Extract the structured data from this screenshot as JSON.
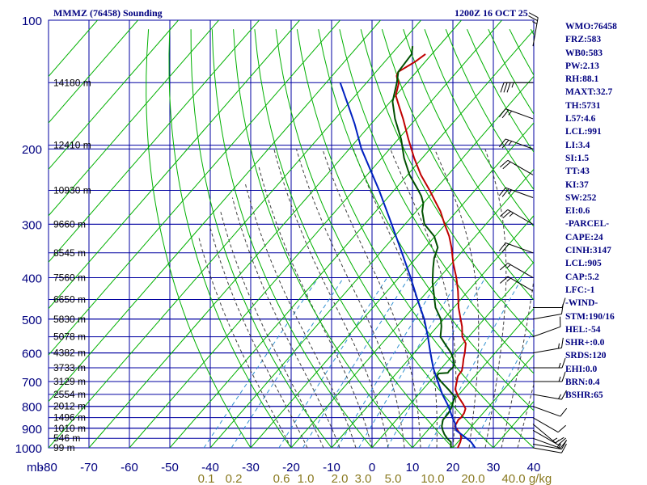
{
  "header": {
    "station_title": "MMMZ (76458) Sounding",
    "valid_time": "1200Z 16 OCT 25"
  },
  "indices": [
    "WMO:76458",
    "FRZ:583",
    "WB0:583",
    "PW:2.13",
    "RH:88.1",
    "MAXT:32.7",
    "TH:5731",
    "L57:4.6",
    "LCL:991",
    "LI:3.4",
    "SI:1.5",
    "TT:43",
    "KI:37",
    "SW:252",
    "EI:0.6",
    "-PARCEL-",
    "CAPE:24",
    "CINH:3147",
    "LCL:905",
    "CAP:5.2",
    "LFC:-1",
    "-WIND-",
    "STM:190/16",
    "HEL:-54",
    "SHR+:0.0",
    "SRDS:120",
    "EHI:0.0",
    "BRN:0.4",
    "BSHR:65"
  ],
  "colors": {
    "grid": "#0000a0",
    "dry_adiabat": "#00b000",
    "moist_adiabat": "#404040",
    "mixing_ratio": "#3090d0",
    "temperature": "#c00000",
    "dewpoint": "#005000",
    "parcel": "#0020c0",
    "wind_barbs": "#000000",
    "axis_text": "#000080",
    "mixing_text": "#8a7a20"
  },
  "chart_data": {
    "type": "skew-t",
    "title": "MMMZ (76458) Sounding",
    "xlabel": "mb",
    "ylabel": "",
    "xlim": [
      -80,
      40
    ],
    "ylim": [
      1000,
      100
    ],
    "grid": true,
    "pressure_levels": [
      100,
      200,
      300,
      400,
      500,
      600,
      700,
      800,
      900,
      1000
    ],
    "temperature_ticks": [
      -80,
      -70,
      -60,
      -50,
      -40,
      -30,
      -20,
      -10,
      0,
      10,
      20,
      30,
      40
    ],
    "height_labels": [
      {
        "p": 140,
        "label": "14180 m"
      },
      {
        "p": 196,
        "label": "12410 m"
      },
      {
        "p": 250,
        "label": "10930 m"
      },
      {
        "p": 300,
        "label": "9660 m"
      },
      {
        "p": 350,
        "label": "8545 m"
      },
      {
        "p": 400,
        "label": "7560 m"
      },
      {
        "p": 450,
        "label": "6650 m"
      },
      {
        "p": 500,
        "label": "5830 m"
      },
      {
        "p": 550,
        "label": "5078 m"
      },
      {
        "p": 600,
        "label": "4382 m"
      },
      {
        "p": 650,
        "label": "3733 m"
      },
      {
        "p": 700,
        "label": "3129 m"
      },
      {
        "p": 750,
        "label": "2554 m"
      },
      {
        "p": 800,
        "label": "2012 m"
      },
      {
        "p": 850,
        "label": "1496 m"
      },
      {
        "p": 900,
        "label": "1010 m"
      },
      {
        "p": 950,
        "label": "546 m"
      },
      {
        "p": 1000,
        "label": "99 m"
      }
    ],
    "mixing_ratio_labels": [
      "0.1",
      "0.2",
      "0.6",
      "1.0",
      "2.0",
      "3.0",
      "5.0",
      "10.0",
      "20.0",
      "40.0",
      "g/kg"
    ],
    "series": [
      {
        "name": "Temperature",
        "points": [
          [
            1012,
            21
          ],
          [
            1000,
            21.2
          ],
          [
            970,
            20.6
          ],
          [
            950,
            20
          ],
          [
            930,
            19
          ],
          [
            910,
            17.4
          ],
          [
            890,
            15.8
          ],
          [
            870,
            15.5
          ],
          [
            860,
            15.3
          ],
          [
            850,
            15.5
          ],
          [
            830,
            15.3
          ],
          [
            810,
            14.7
          ],
          [
            790,
            13.1
          ],
          [
            760,
            10.4
          ],
          [
            730,
            8
          ],
          [
            700,
            6.7
          ],
          [
            680,
            5.8
          ],
          [
            660,
            5.6
          ],
          [
            640,
            4.6
          ],
          [
            620,
            3.5
          ],
          [
            600,
            2.5
          ],
          [
            570,
            0.7
          ],
          [
            550,
            -1.6
          ],
          [
            520,
            -3.9
          ],
          [
            500,
            -5.8
          ],
          [
            470,
            -8.8
          ],
          [
            430,
            -12.5
          ],
          [
            400,
            -15.8
          ],
          [
            370,
            -19.7
          ],
          [
            340,
            -23.5
          ],
          [
            320,
            -26.5
          ],
          [
            300,
            -30.2
          ],
          [
            280,
            -34
          ],
          [
            265,
            -37.5
          ],
          [
            250,
            -41.2
          ],
          [
            230,
            -46.7
          ],
          [
            210,
            -52
          ],
          [
            190,
            -57.4
          ],
          [
            170,
            -63.2
          ],
          [
            158,
            -67.2
          ],
          [
            150,
            -70
          ],
          [
            145,
            -71
          ],
          [
            140,
            -72
          ],
          [
            137,
            -73.3
          ],
          [
            135,
            -74
          ],
          [
            132,
            -74.5
          ],
          [
            125,
            -72.5
          ],
          [
            120,
            -71.6
          ]
        ]
      },
      {
        "name": "Dewpoint",
        "points": [
          [
            1012,
            19.6
          ],
          [
            1000,
            19.5
          ],
          [
            970,
            18.3
          ],
          [
            950,
            16.5
          ],
          [
            930,
            15
          ],
          [
            910,
            13.7
          ],
          [
            890,
            12.6
          ],
          [
            860,
            11.5
          ],
          [
            850,
            11.5
          ],
          [
            830,
            11.4
          ],
          [
            810,
            11.1
          ],
          [
            790,
            10.5
          ],
          [
            760,
            9.5
          ],
          [
            730,
            6.3
          ],
          [
            700,
            2.8
          ],
          [
            688,
            1.5
          ],
          [
            680,
            0.7
          ],
          [
            675,
            0.5
          ],
          [
            670,
            0.5
          ],
          [
            668,
            2.6
          ],
          [
            660,
            2.5
          ],
          [
            650,
            2.7
          ],
          [
            640,
            2.5
          ],
          [
            620,
            1
          ],
          [
            600,
            -0.9
          ],
          [
            570,
            -4.5
          ],
          [
            550,
            -7
          ],
          [
            520,
            -9
          ],
          [
            500,
            -10.7
          ],
          [
            470,
            -14.5
          ],
          [
            440,
            -17.5
          ],
          [
            410,
            -20.7
          ],
          [
            380,
            -23.6
          ],
          [
            360,
            -25.5
          ],
          [
            340,
            -26.9
          ],
          [
            320,
            -30.2
          ],
          [
            300,
            -35.2
          ],
          [
            280,
            -38.5
          ],
          [
            268,
            -40
          ],
          [
            258,
            -42
          ],
          [
            250,
            -44
          ],
          [
            230,
            -49.5
          ],
          [
            210,
            -54.5
          ],
          [
            190,
            -59.2
          ],
          [
            170,
            -65.2
          ],
          [
            155,
            -69.5
          ],
          [
            140,
            -72.5
          ],
          [
            132,
            -74.5
          ],
          [
            120,
            -75
          ],
          [
            115,
            -76.5
          ]
        ]
      },
      {
        "name": "Parcel",
        "points": [
          [
            1000,
            25.5
          ],
          [
            970,
            23.3
          ],
          [
            950,
            21.3
          ],
          [
            910,
            17
          ],
          [
            880,
            15.5
          ],
          [
            850,
            13.4
          ],
          [
            800,
            10
          ],
          [
            750,
            5.9
          ],
          [
            700,
            2
          ],
          [
            650,
            -2.1
          ],
          [
            600,
            -6
          ],
          [
            550,
            -10.1
          ],
          [
            500,
            -14.8
          ],
          [
            450,
            -20.7
          ],
          [
            400,
            -27.1
          ],
          [
            350,
            -34.6
          ],
          [
            300,
            -43.3
          ],
          [
            250,
            -53.7
          ],
          [
            200,
            -67
          ],
          [
            175,
            -74
          ],
          [
            158,
            -79.7
          ],
          [
            140,
            -86.5
          ]
        ]
      }
    ],
    "wind_barbs": [
      {
        "p": 115,
        "dir": 10,
        "spd": 25
      },
      {
        "p": 140,
        "dir": 270,
        "spd": 35
      },
      {
        "p": 170,
        "dir": 290,
        "spd": 25
      },
      {
        "p": 200,
        "dir": 290,
        "spd": 25
      },
      {
        "p": 230,
        "dir": 300,
        "spd": 20
      },
      {
        "p": 260,
        "dir": 290,
        "spd": 25
      },
      {
        "p": 300,
        "dir": 300,
        "spd": 25
      },
      {
        "p": 350,
        "dir": 290,
        "spd": 20
      },
      {
        "p": 400,
        "dir": 300,
        "spd": 15
      },
      {
        "p": 430,
        "dir": 300,
        "spd": 15
      },
      {
        "p": 470,
        "dir": 90,
        "spd": 10
      },
      {
        "p": 500,
        "dir": 80,
        "spd": 10
      },
      {
        "p": 550,
        "dir": 70,
        "spd": 10
      },
      {
        "p": 600,
        "dir": 80,
        "spd": 15
      },
      {
        "p": 650,
        "dir": 90,
        "spd": 15
      },
      {
        "p": 700,
        "dir": 90,
        "spd": 15
      },
      {
        "p": 750,
        "dir": 100,
        "spd": 15
      },
      {
        "p": 800,
        "dir": 110,
        "spd": 10
      },
      {
        "p": 850,
        "dir": 120,
        "spd": 10
      },
      {
        "p": 880,
        "dir": 130,
        "spd": 15
      },
      {
        "p": 910,
        "dir": 120,
        "spd": 15
      },
      {
        "p": 950,
        "dir": 110,
        "spd": 15
      },
      {
        "p": 980,
        "dir": 100,
        "spd": 15
      },
      {
        "p": 1000,
        "dir": 100,
        "spd": 10
      }
    ]
  }
}
